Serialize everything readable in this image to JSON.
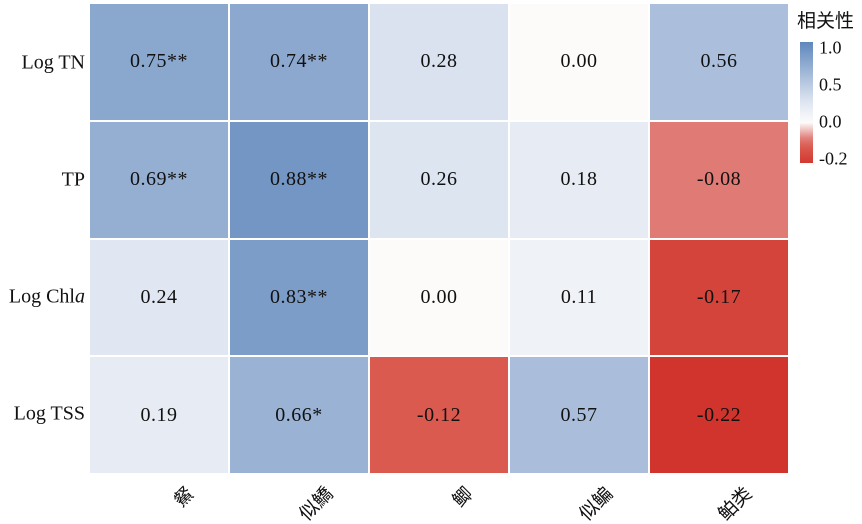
{
  "chart_data": {
    "type": "heatmap",
    "title": "",
    "xlabel": "",
    "ylabel": "",
    "rows": [
      {
        "label": "Log TN",
        "italic_suffix": ""
      },
      {
        "label": "TP",
        "italic_suffix": ""
      },
      {
        "label": "Log Chl",
        "italic_suffix": "a"
      },
      {
        "label": "Log TSS",
        "italic_suffix": ""
      }
    ],
    "columns": [
      "䱗",
      "似鱎",
      "鲫",
      "似鳊",
      "鲌类"
    ],
    "values": [
      [
        0.75,
        0.74,
        0.28,
        0.0,
        0.56
      ],
      [
        0.69,
        0.88,
        0.26,
        0.18,
        -0.08
      ],
      [
        0.24,
        0.83,
        0.0,
        0.11,
        -0.17
      ],
      [
        0.19,
        0.66,
        -0.12,
        0.57,
        -0.22
      ]
    ],
    "cell_labels": [
      [
        "0.75**",
        "0.74**",
        "0.28",
        "0.00",
        "0.56"
      ],
      [
        "0.69**",
        "0.88**",
        "0.26",
        "0.18",
        "-0.08"
      ],
      [
        "0.24",
        "0.83**",
        "0.00",
        "0.11",
        "-0.17"
      ],
      [
        "0.19",
        "0.66*",
        "-0.12",
        "0.57",
        "-0.22"
      ]
    ],
    "legend": {
      "title": "相关性",
      "ticks": [
        "1.0",
        "0.5",
        "0.0",
        "-0.2"
      ],
      "max": 1.0,
      "min": -0.2,
      "position": "right"
    },
    "colormap_stops": [
      {
        "v": -0.25,
        "color": "#cd2a23"
      },
      {
        "v": -0.17,
        "color": "#d5443a"
      },
      {
        "v": -0.12,
        "color": "#db5a50"
      },
      {
        "v": -0.08,
        "color": "#e07a74"
      },
      {
        "v": 0.0,
        "color": "#fcfbfa"
      },
      {
        "v": 0.25,
        "color": "#dfe6f2"
      },
      {
        "v": 0.5,
        "color": "#b6c7e0"
      },
      {
        "v": 1.0,
        "color": "#5e87bc"
      }
    ],
    "grid": false
  }
}
